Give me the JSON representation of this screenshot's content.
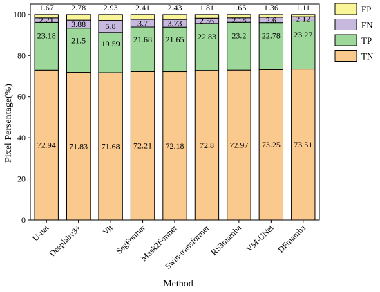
{
  "chart_data": {
    "type": "bar",
    "stacked": true,
    "title": "",
    "xlabel": "Method",
    "ylabel": "Pixel Persentage(%)",
    "ylim": [
      0,
      105
    ],
    "yticks": [
      0,
      20,
      40,
      60,
      80,
      100
    ],
    "legend_position": "top-right",
    "categories": [
      "U-net",
      "Deeplabv3+",
      "Vit",
      "SegFormer",
      "Mask2Former",
      "Swin-transformer",
      "RS3mamba",
      "VM-UNet",
      "DFmamba"
    ],
    "series": [
      {
        "name": "TN",
        "color": "#FAC98E",
        "values": [
          72.94,
          71.83,
          71.68,
          72.21,
          72.18,
          72.8,
          72.97,
          73.25,
          73.51
        ]
      },
      {
        "name": "TP",
        "color": "#9DD79A",
        "values": [
          23.18,
          21.5,
          19.59,
          21.68,
          21.65,
          22.83,
          23.2,
          22.78,
          23.27
        ]
      },
      {
        "name": "FN",
        "color": "#C7B8DD",
        "values": [
          2.21,
          3.88,
          5.8,
          3.7,
          3.73,
          2.56,
          2.18,
          2.6,
          2.12
        ]
      },
      {
        "name": "FP",
        "color": "#FBF59A",
        "values": [
          1.67,
          2.78,
          2.93,
          2.41,
          2.43,
          1.81,
          1.65,
          1.36,
          1.11
        ]
      }
    ],
    "legend_order": [
      "FP",
      "FN",
      "TP",
      "TN"
    ]
  }
}
